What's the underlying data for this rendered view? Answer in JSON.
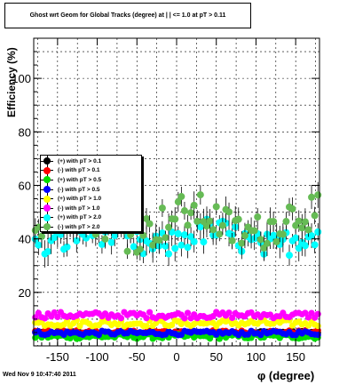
{
  "title": "Ghost wrt Geom for Global Tracks  (degree) at  |  | <= 1.0 at pT > 0.11",
  "footer": "Wed Nov  9 10:47:40 2011",
  "chart_data": {
    "type": "scatter",
    "xlabel": "φ (degree)",
    "ylabel": "Efficiency (%)",
    "xlim": [
      -180,
      180
    ],
    "ylim": [
      0,
      115
    ],
    "xticks": [
      -150,
      -100,
      -50,
      0,
      50,
      100,
      150
    ],
    "yticks": [
      20,
      40,
      60,
      80,
      100
    ],
    "grid": true,
    "legend_position": "left-middle",
    "series": [
      {
        "name": "(+) with pT > 0.1",
        "color": "#000000",
        "level": 5.0,
        "spread": 0.6
      },
      {
        "name": "(-) with pT > 0.1",
        "color": "#ff0000",
        "level": 5.2,
        "spread": 0.6
      },
      {
        "name": "(+) with pT > 0.5",
        "color": "#00dd00",
        "level": 3.5,
        "spread": 0.9
      },
      {
        "name": "(-) with pT > 0.5",
        "color": "#0000ff",
        "level": 4.8,
        "spread": 0.8
      },
      {
        "name": "(+) with pT > 1.0",
        "color": "#ffff00",
        "level": 8.5,
        "spread": 1.2
      },
      {
        "name": "(-) with pT > 1.0",
        "color": "#ff00ff",
        "level": 11.5,
        "spread": 1.2
      },
      {
        "name": "(+) with pT > 2.0",
        "color": "#00ffff",
        "level": 40.0,
        "spread": 5.0
      },
      {
        "name": "(-) with pT > 2.0",
        "color": "#66bb55",
        "level": 46.0,
        "spread": 7.0
      }
    ]
  }
}
